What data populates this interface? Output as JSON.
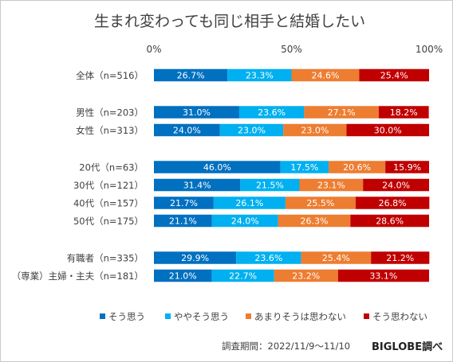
{
  "chart_data": {
    "type": "bar",
    "subtype": "stacked-horizontal-100",
    "title": "生まれ変わっても同じ相手と結婚したい",
    "x_ticks": [
      "0%",
      "50%",
      "100%"
    ],
    "xlim": [
      0,
      100
    ],
    "grid": false,
    "legend_position": "bottom",
    "categories": [
      "全体（n=516）",
      "男性（n=203）",
      "女性（n=313）",
      "20代（n=63）",
      "30代（n=121）",
      "40代（n=157）",
      "50代（n=175）",
      "有職者（n=335）",
      "（専業）主婦・主夫（n=181）"
    ],
    "groups": [
      [
        0
      ],
      [
        1,
        2
      ],
      [
        3,
        4,
        5,
        6
      ],
      [
        7,
        8
      ]
    ],
    "series": [
      {
        "name": "そう思う",
        "color": "#0070c0",
        "values": [
          26.7,
          31.0,
          24.0,
          46.0,
          31.4,
          21.7,
          21.1,
          29.9,
          21.0
        ],
        "labels": [
          "26.7%",
          "31.0%",
          "24.0%",
          "46.0%",
          "31.4%",
          "21.7%",
          "21.1%",
          "29.9%",
          "21.0%"
        ]
      },
      {
        "name": "ややそう思う",
        "color": "#00b0f0",
        "values": [
          23.3,
          23.6,
          23.0,
          17.5,
          21.5,
          26.1,
          24.0,
          23.6,
          22.7
        ],
        "labels": [
          "23.3%",
          "23.6%",
          "23.0%",
          "17.5%",
          "21.5%",
          "26.1%",
          "24.0%",
          "23.6%",
          "22.7%"
        ]
      },
      {
        "name": "あまりそうは思わない",
        "color": "#ed7d31",
        "values": [
          24.6,
          27.1,
          23.0,
          20.6,
          23.1,
          25.5,
          26.3,
          25.4,
          23.2
        ],
        "labels": [
          "24.6%",
          "27.1%",
          "23.0%",
          "20.6%",
          "23.1%",
          "25.5%",
          "26.3%",
          "25.4%",
          "23.2%"
        ]
      },
      {
        "name": "そう思わない",
        "color": "#c00000",
        "values": [
          25.4,
          18.2,
          30.0,
          15.9,
          24.0,
          26.8,
          28.6,
          21.2,
          33.1
        ],
        "labels": [
          "25.4%",
          "18.2%",
          "30.0%",
          "15.9%",
          "24.0%",
          "26.8%",
          "28.6%",
          "21.2%",
          "33.1%"
        ]
      }
    ]
  },
  "footer": {
    "period": "調査期間：2022/11/9～11/10",
    "brand": "BIGLOBE調べ"
  }
}
